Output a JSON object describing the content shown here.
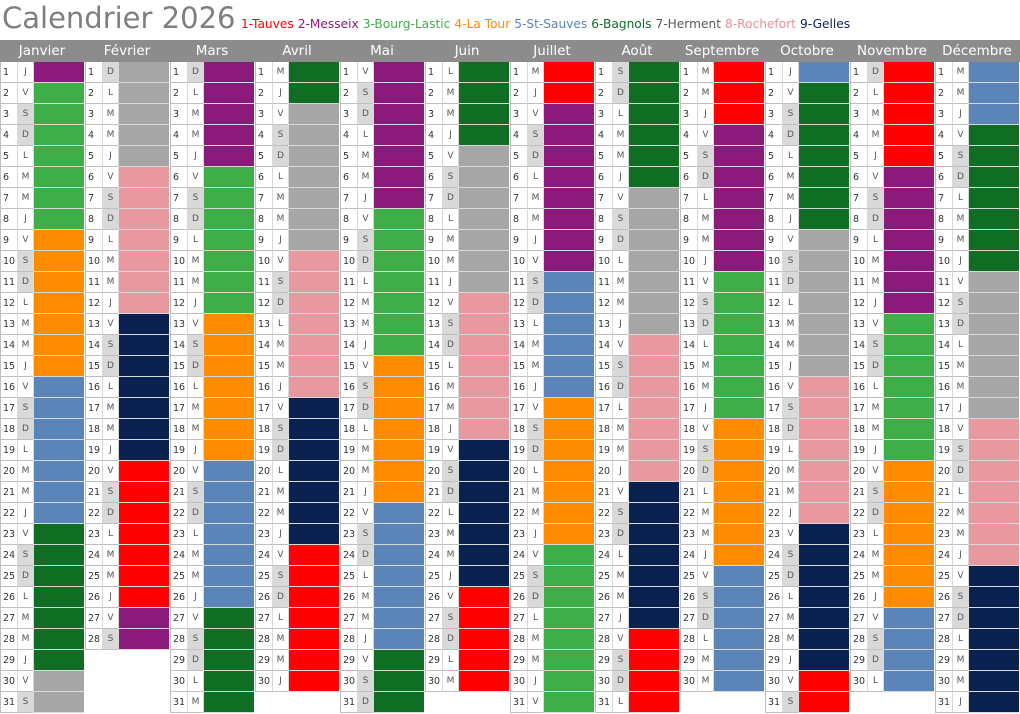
{
  "title": "Calendrier 2026",
  "legend": [
    {
      "label": "1-Tauves",
      "color": "#ff0000"
    },
    {
      "label": "2-Messeix",
      "color": "#8b1a7a"
    },
    {
      "label": "3-Bourg-Lastic",
      "color": "#3fae49"
    },
    {
      "label": "4-La Tour",
      "color": "#ff8c00"
    },
    {
      "label": "5-St-Sauves",
      "color": "#5b84b8"
    },
    {
      "label": "6-Bagnols",
      "color": "#0f6e24"
    },
    {
      "label": "7-Herment",
      "color": "#595959"
    },
    {
      "label": "8-Rochefort",
      "color": "#e8909b"
    },
    {
      "label": "9-Gelles",
      "color": "#0a2150"
    }
  ],
  "site_colors": {
    "T": "#ff0000",
    "M": "#8b1a7a",
    "B": "#3fae49",
    "L": "#ff8c00",
    "S": "#5b84b8",
    "G": "#0f6e24",
    "H": "#a6a6a6",
    "R": "#e8999f",
    "N": "#0a2150",
    "W": "#ffffff"
  },
  "months": [
    {
      "name": "Janvier",
      "days": 31,
      "first_weekday": 3,
      "sites": "MBBBBBBBLLLLLLLSSSSSSSGGGGGGGHH"
    },
    {
      "name": "Février",
      "days": 28,
      "first_weekday": 6,
      "sites": "HHHHHRRRRRRRNNNNNNNTTTTTTTMM"
    },
    {
      "name": "Mars",
      "days": 31,
      "first_weekday": 6,
      "sites": "MMMMMBBBBBBBLLLLLLLSSSSSSSGGGGG"
    },
    {
      "name": "Avril",
      "days": 30,
      "first_weekday": 2,
      "sites": "GGHHHHHHHRRRRRRRNNNNNNNTTTTTTT"
    },
    {
      "name": "Mai",
      "days": 31,
      "first_weekday": 4,
      "sites": "MMMMMMMBBBBBBBLLLLLLLSSSSSSSGGG"
    },
    {
      "name": "Juin",
      "days": 30,
      "first_weekday": 0,
      "sites": "GGGGHHHHHHHRRRRRRRNNNNNNNTTTTT"
    },
    {
      "name": "Juillet",
      "days": 31,
      "first_weekday": 2,
      "sites": "TTMMMMMMMMSSSSSSLLLLLLLBBBBBBBB"
    },
    {
      "name": "Août",
      "days": 31,
      "first_weekday": 5,
      "sites": "GGGGGGHHHHHHHRRRRRRRNNNNNNNTTTT"
    },
    {
      "name": "Septembre",
      "days": 30,
      "first_weekday": 1,
      "sites": "TTTMMMMMMMBBBBBBBLLLLLLLSSSSSS"
    },
    {
      "name": "Octobre",
      "days": 31,
      "first_weekday": 3,
      "sites": "SGGGGGGGHHHHHHHRRRRRRRNNNNNNNTT"
    },
    {
      "name": "Novembre",
      "days": 30,
      "first_weekday": 6,
      "sites": "TTTTTMMMMMMMBBBBBBBLLLLLLLSSSS"
    },
    {
      "name": "Décembre",
      "days": 31,
      "first_weekday": 1,
      "sites": "SSSGGGGGGGHHHHHHHRRRRRRRNNNNNNN"
    }
  ],
  "weekday_letters": [
    "L",
    "M",
    "M",
    "J",
    "V",
    "S",
    "D"
  ]
}
